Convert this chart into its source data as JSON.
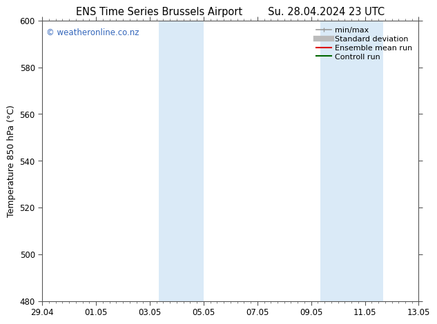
{
  "title_left": "ENS Time Series Brussels Airport",
  "title_right": "Su. 28.04.2024 23 UTC",
  "ylabel": "Temperature 850 hPa (°C)",
  "ylim": [
    480,
    600
  ],
  "yticks": [
    480,
    500,
    520,
    540,
    560,
    580,
    600
  ],
  "xtick_labels": [
    "29.04",
    "01.05",
    "03.05",
    "05.05",
    "07.05",
    "09.05",
    "11.05",
    "13.05"
  ],
  "xtick_positions": [
    0,
    2,
    4,
    6,
    8,
    10,
    12,
    14
  ],
  "shaded_bands": [
    {
      "x_start": 4.33,
      "x_end": 6.0
    },
    {
      "x_start": 10.33,
      "x_end": 12.67
    }
  ],
  "shade_color": "#daeaf7",
  "background_color": "#ffffff",
  "watermark_text": "© weatheronline.co.nz",
  "watermark_color": "#3366bb",
  "legend_items": [
    {
      "label": "min/max",
      "color": "#999999",
      "lw": 1.2
    },
    {
      "label": "Standard deviation",
      "color": "#bbbbbb",
      "lw": 5
    },
    {
      "label": "Ensemble mean run",
      "color": "#dd0000",
      "lw": 1.5
    },
    {
      "label": "Controll run",
      "color": "#006600",
      "lw": 1.5
    }
  ],
  "spine_color": "#555555",
  "tick_label_fontsize": 8.5,
  "axis_label_fontsize": 9,
  "title_fontsize": 10.5,
  "legend_fontsize": 8
}
